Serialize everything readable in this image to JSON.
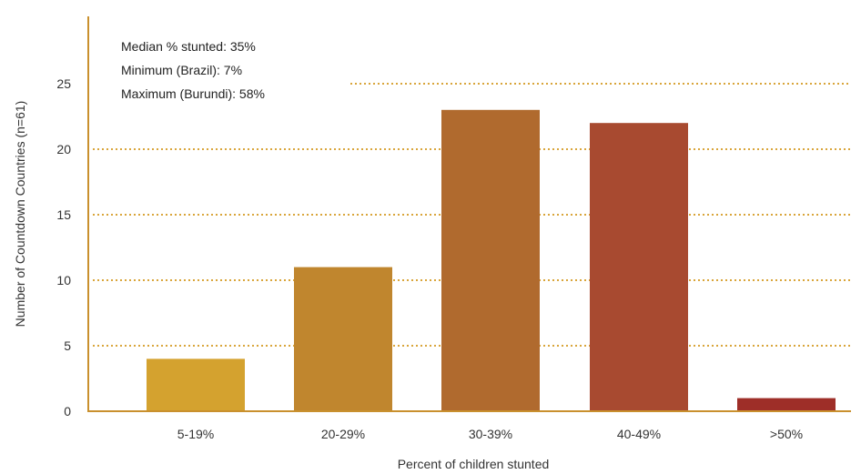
{
  "chart_data": {
    "type": "bar",
    "categories": [
      "5-19%",
      "20-29%",
      "30-39%",
      "40-49%",
      ">50%"
    ],
    "values": [
      4,
      11,
      23,
      22,
      1
    ],
    "bar_colors": [
      "#D4A22F",
      "#C0862E",
      "#B06A2E",
      "#A84A30",
      "#9E2E28"
    ],
    "xlabel": "Percent of children stunted",
    "ylabel": "Number of Countdown Countries (n=61)",
    "ylim": [
      0,
      28
    ],
    "yticks": [
      0,
      5,
      10,
      15,
      20,
      25
    ],
    "grid": true,
    "gridline_style": "dotted",
    "gridline_color": "#D9A53A",
    "axis_color": "#C9902E",
    "annotations": [
      "Median % stunted:  35%",
      "Minimum (Brazil):  7%",
      "Maximum (Burundi):  58%"
    ]
  }
}
